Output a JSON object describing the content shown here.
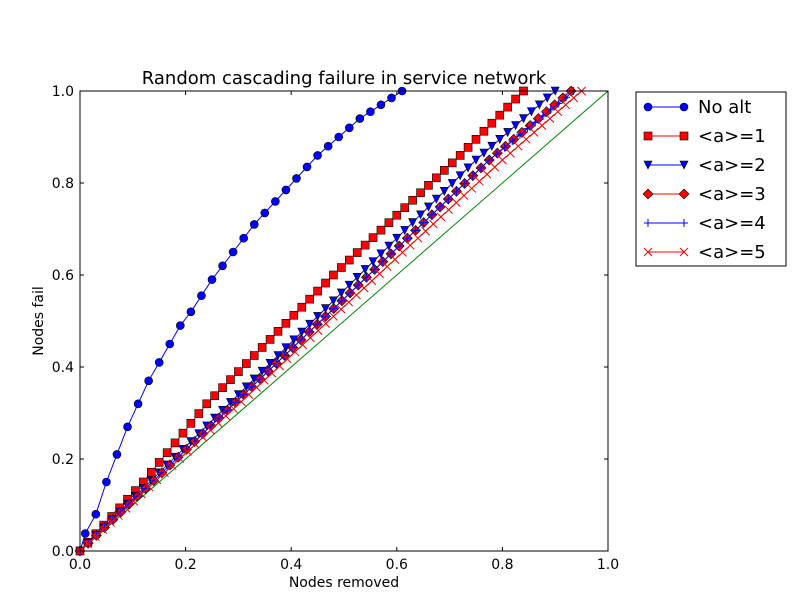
{
  "chart_data": {
    "type": "line",
    "title": "Random cascading failure in service network",
    "xlabel": "Nodes removed",
    "ylabel": "Nodes fail",
    "xlim": [
      0.0,
      1.0
    ],
    "ylim": [
      0.0,
      1.0
    ],
    "xticks": [
      "0.0",
      "0.2",
      "0.4",
      "0.6",
      "0.8",
      "1.0"
    ],
    "yticks": [
      "0.0",
      "0.2",
      "0.4",
      "0.6",
      "0.8",
      "1.0"
    ],
    "grid": false,
    "legend_position": "outside-top-right",
    "reference_line": {
      "x": [
        0.0,
        1.0
      ],
      "y": [
        0.0,
        1.0
      ],
      "color": "#008000"
    },
    "series": [
      {
        "name": "No alt",
        "marker": "circle",
        "color": "#0000ff",
        "x": [
          0.0,
          0.01,
          0.03,
          0.05,
          0.07,
          0.09,
          0.11,
          0.13,
          0.15,
          0.17,
          0.19,
          0.21,
          0.23,
          0.25,
          0.27,
          0.29,
          0.31,
          0.33,
          0.35,
          0.37,
          0.39,
          0.41,
          0.43,
          0.45,
          0.47,
          0.49,
          0.51,
          0.53,
          0.55,
          0.57,
          0.59,
          0.61
        ],
        "y": [
          0.0,
          0.038,
          0.08,
          0.15,
          0.21,
          0.27,
          0.32,
          0.37,
          0.41,
          0.45,
          0.49,
          0.52,
          0.555,
          0.59,
          0.62,
          0.65,
          0.68,
          0.71,
          0.735,
          0.76,
          0.785,
          0.81,
          0.835,
          0.86,
          0.88,
          0.9,
          0.92,
          0.94,
          0.955,
          0.97,
          0.985,
          1.0
        ]
      },
      {
        "name": "<a>=1",
        "marker": "square",
        "color": "#ff0000",
        "x": [
          0.0,
          0.12,
          0.24,
          0.36,
          0.48,
          0.6,
          0.72,
          0.84
        ],
        "y": [
          0.0,
          0.15,
          0.32,
          0.46,
          0.6,
          0.73,
          0.86,
          1.0
        ]
      },
      {
        "name": "<a>=2",
        "marker": "triangle-down",
        "color": "#0000ff",
        "x": [
          0.0,
          0.15,
          0.3,
          0.45,
          0.6,
          0.75,
          0.9
        ],
        "y": [
          0.0,
          0.17,
          0.34,
          0.51,
          0.68,
          0.85,
          1.0
        ]
      },
      {
        "name": "<a>=3",
        "marker": "diamond",
        "color": "#ff0000",
        "x": [
          0.0,
          0.155,
          0.31,
          0.465,
          0.62,
          0.775,
          0.93
        ],
        "y": [
          0.0,
          0.17,
          0.34,
          0.51,
          0.68,
          0.85,
          1.0
        ]
      },
      {
        "name": "<a>=4",
        "marker": "plus",
        "color": "#0000ff",
        "x": [
          0.0,
          0.155,
          0.31,
          0.465,
          0.62,
          0.775,
          0.935
        ],
        "y": [
          0.0,
          0.17,
          0.34,
          0.51,
          0.68,
          0.85,
          1.0
        ]
      },
      {
        "name": "<a>=5",
        "marker": "x",
        "color": "#ff0000",
        "x": [
          0.0,
          0.16,
          0.32,
          0.48,
          0.64,
          0.8,
          0.95
        ],
        "y": [
          0.0,
          0.17,
          0.34,
          0.51,
          0.68,
          0.85,
          1.0
        ]
      }
    ]
  }
}
